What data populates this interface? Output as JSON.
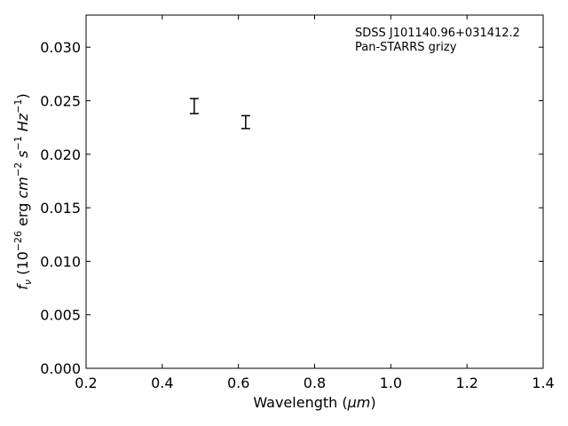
{
  "chart_data": {
    "type": "scatter",
    "xlim": [
      0.2,
      1.4
    ],
    "ylim": [
      0.0,
      0.033
    ],
    "x_ticks": [
      "0.2",
      "0.4",
      "0.6",
      "0.8",
      "1.0",
      "1.2",
      "1.4"
    ],
    "y_ticks": [
      "0.000",
      "0.005",
      "0.010",
      "0.015",
      "0.020",
      "0.025",
      "0.030"
    ],
    "xlabel": {
      "main": "Wavelength (",
      "unit": "μm",
      "close": ")"
    },
    "ylabel": {
      "f": "f",
      "nu": "ν",
      "open": " (10",
      "exp1": "−26",
      "erg": " erg ",
      "cm": "cm",
      "exp2": "−2",
      "s": " s",
      "exp3": "−1",
      "hz": " Hz",
      "exp4": "−1",
      "close": ")"
    },
    "annotations": [
      "SDSS J101140.96+031412.2",
      "Pan-STARRS grizy"
    ],
    "series": [
      {
        "marker": "errorbar-only",
        "color": "#000000",
        "points": [
          {
            "x": 0.484,
            "y": 0.0245,
            "yerr_low": 0.0007,
            "yerr_high": 0.0007
          },
          {
            "x": 0.619,
            "y": 0.023,
            "yerr_low": 0.0006,
            "yerr_high": 0.0006
          }
        ]
      }
    ],
    "grid": false,
    "ticks_direction": "in",
    "ticks_on_all_sides": true
  }
}
